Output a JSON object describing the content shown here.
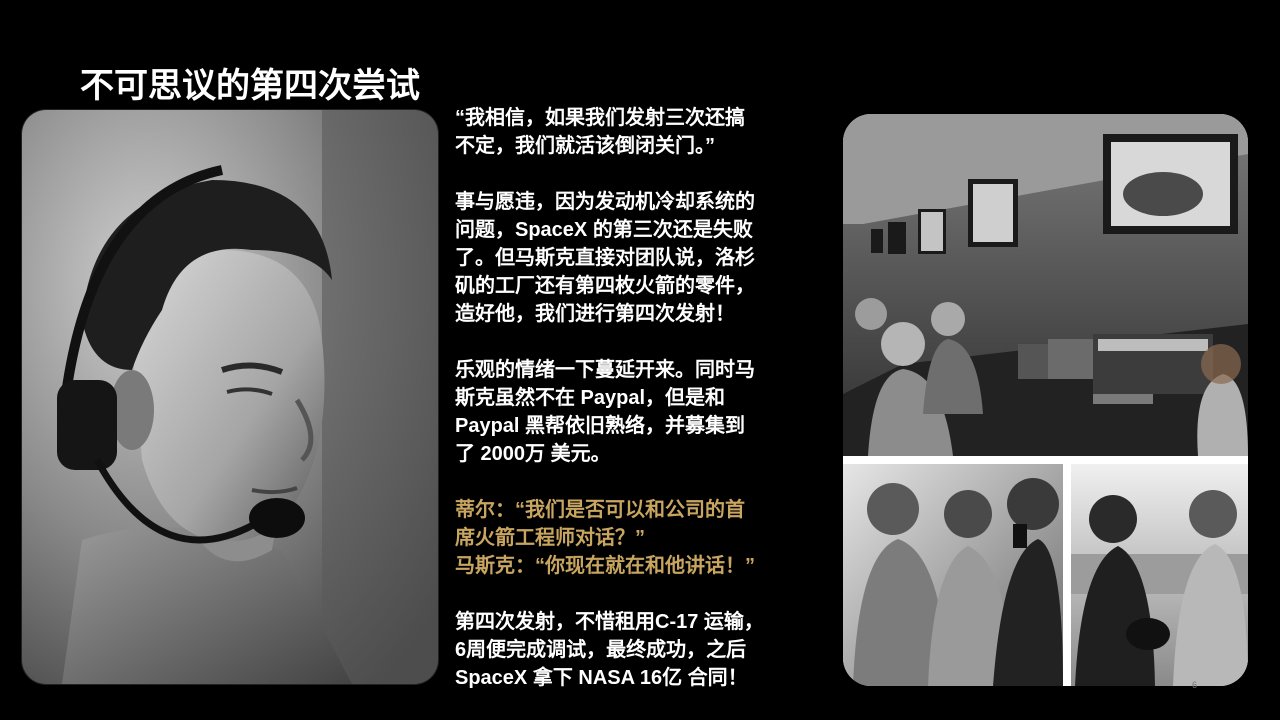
{
  "slide": {
    "title": "不可思议的第四次尝试",
    "page_number": "6"
  },
  "text_column": {
    "quote": {
      "lines": [
        "“我相信，如果我们发射三次还搞",
        "不定，我们就活该倒闭关门。”"
      ]
    },
    "para1": {
      "lines": [
        "事与愿违，因为发动机冷却系统的",
        "问题，SpaceX 的第三次还是失败",
        "了。但马斯克直接对团队说，洛杉",
        "矶的工厂还有第四枚火箭的零件，",
        "造好他，我们进行第四次发射！"
      ]
    },
    "para2": {
      "lines": [
        "乐观的情绪一下蔓延开来。同时马",
        "斯克虽然不在 Paypal，但是和",
        "Paypal 黑帮依旧熟络，并募集到",
        "了 2000万 美元。"
      ]
    },
    "dialogue": {
      "lines": [
        "蒂尔：“我们是否可以和公司的首",
        "席火箭工程师对话？”",
        "马斯克：“你现在就在和他讲话！”"
      ]
    },
    "para3": {
      "lines": [
        "第四次发射，不惜租用C-17 运输，",
        "6周便完成调试，最终成功，之后",
        "SpaceX 拿下 NASA 16亿 合同！"
      ]
    }
  },
  "colors": {
    "background": "#000000",
    "text": "#ffffff",
    "dialogue_accent": "#c8a560"
  },
  "images": {
    "portrait": "portrait-photo-headset",
    "control_room": "mission-control-room-photo",
    "celebration": "team-celebration-photo",
    "outdoor": "outdoor-team-photo"
  }
}
